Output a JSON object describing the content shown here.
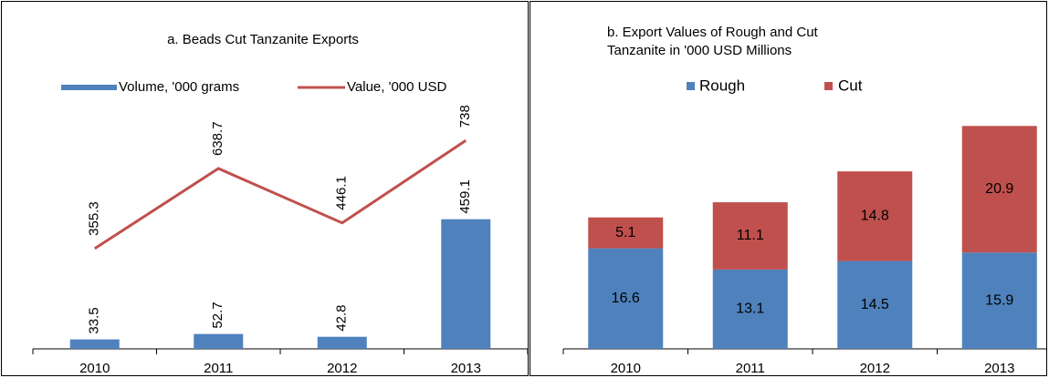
{
  "chart_data": [
    {
      "type": "bar-line",
      "title": "a. Beads Cut Tanzanite  Exports",
      "categories": [
        "2010",
        "2011",
        "2012",
        "2013"
      ],
      "series": [
        {
          "name": "Volume, '000 grams",
          "type": "bar",
          "color": "#4f81bd",
          "values": [
            33.5,
            52.7,
            42.8,
            459.1
          ]
        },
        {
          "name": "Value, '000 USD",
          "type": "line",
          "color": "#c0504d",
          "values": [
            355.3,
            638.7,
            446.1,
            738
          ]
        }
      ],
      "ylim": [
        0,
        900
      ]
    },
    {
      "type": "stacked-bar",
      "title": [
        "b. Export Values of Rough and Cut",
        "Tanzanite  in '000 USD Millions"
      ],
      "categories": [
        "2010",
        "2011",
        "2012",
        "2013"
      ],
      "series": [
        {
          "name": "Rough",
          "color": "#4f81bd",
          "values": [
            16.6,
            13.1,
            14.5,
            15.9
          ]
        },
        {
          "name": "Cut",
          "color": "#c0504d",
          "values": [
            5.1,
            11.1,
            14.8,
            20.9
          ]
        }
      ],
      "ylim": [
        0,
        40
      ]
    }
  ]
}
